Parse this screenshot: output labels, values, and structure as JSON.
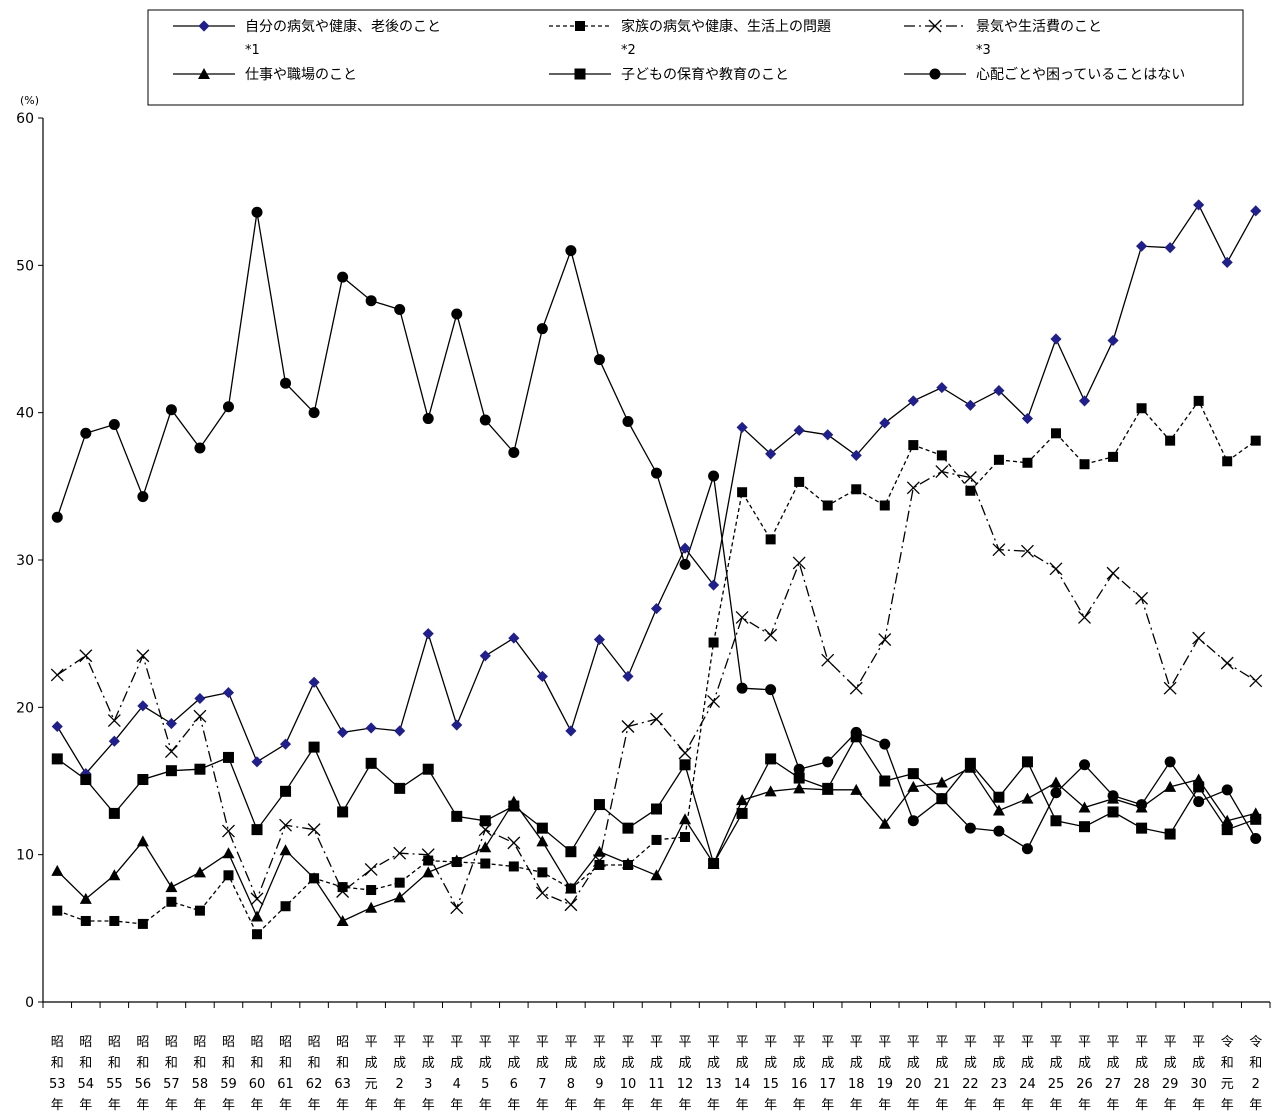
{
  "chart_data": {
    "type": "line",
    "title": "",
    "xlabel": "",
    "ylabel": "(%)",
    "ylim": [
      0,
      60
    ],
    "yticks": [
      0,
      10,
      20,
      30,
      40,
      50,
      60
    ],
    "grid": false,
    "legend_position": "top",
    "categories": [
      "昭和53年",
      "昭和54年",
      "昭和55年",
      "昭和56年",
      "昭和57年",
      "昭和58年",
      "昭和59年",
      "昭和60年",
      "昭和61年",
      "昭和62年",
      "昭和63年",
      "平成元年",
      "平成2年",
      "平成3年",
      "平成4年",
      "平成5年",
      "平成6年",
      "平成7年",
      "平成8年",
      "平成9年",
      "平成10年",
      "平成11年",
      "平成12年",
      "平成13年",
      "平成14年",
      "平成15年",
      "平成16年",
      "平成17年",
      "平成18年",
      "平成19年",
      "平成20年",
      "平成21年",
      "平成22年",
      "平成23年",
      "平成24年",
      "平成25年",
      "平成26年",
      "平成27年",
      "平成28年",
      "平成29年",
      "平成30年",
      "令和元年",
      "令和2年"
    ],
    "category_lines": [
      [
        "昭",
        "和",
        "53",
        "年"
      ],
      [
        "昭",
        "和",
        "54",
        "年"
      ],
      [
        "昭",
        "和",
        "55",
        "年"
      ],
      [
        "昭",
        "和",
        "56",
        "年"
      ],
      [
        "昭",
        "和",
        "57",
        "年"
      ],
      [
        "昭",
        "和",
        "58",
        "年"
      ],
      [
        "昭",
        "和",
        "59",
        "年"
      ],
      [
        "昭",
        "和",
        "60",
        "年"
      ],
      [
        "昭",
        "和",
        "61",
        "年"
      ],
      [
        "昭",
        "和",
        "62",
        "年"
      ],
      [
        "昭",
        "和",
        "63",
        "年"
      ],
      [
        "平",
        "成",
        "元",
        "年"
      ],
      [
        "平",
        "成",
        "2",
        "年"
      ],
      [
        "平",
        "成",
        "3",
        "年"
      ],
      [
        "平",
        "成",
        "4",
        "年"
      ],
      [
        "平",
        "成",
        "5",
        "年"
      ],
      [
        "平",
        "成",
        "6",
        "年"
      ],
      [
        "平",
        "成",
        "7",
        "年"
      ],
      [
        "平",
        "成",
        "8",
        "年"
      ],
      [
        "平",
        "成",
        "9",
        "年"
      ],
      [
        "平",
        "成",
        "10",
        "年"
      ],
      [
        "平",
        "成",
        "11",
        "年"
      ],
      [
        "平",
        "成",
        "12",
        "年"
      ],
      [
        "平",
        "成",
        "13",
        "年"
      ],
      [
        "平",
        "成",
        "14",
        "年"
      ],
      [
        "平",
        "成",
        "15",
        "年"
      ],
      [
        "平",
        "成",
        "16",
        "年"
      ],
      [
        "平",
        "成",
        "17",
        "年"
      ],
      [
        "平",
        "成",
        "18",
        "年"
      ],
      [
        "平",
        "成",
        "19",
        "年"
      ],
      [
        "平",
        "成",
        "20",
        "年"
      ],
      [
        "平",
        "成",
        "21",
        "年"
      ],
      [
        "平",
        "成",
        "22",
        "年"
      ],
      [
        "平",
        "成",
        "23",
        "年"
      ],
      [
        "平",
        "成",
        "24",
        "年"
      ],
      [
        "平",
        "成",
        "25",
        "年"
      ],
      [
        "平",
        "成",
        "26",
        "年"
      ],
      [
        "平",
        "成",
        "27",
        "年"
      ],
      [
        "平",
        "成",
        "28",
        "年"
      ],
      [
        "平",
        "成",
        "29",
        "年"
      ],
      [
        "平",
        "成",
        "30",
        "年"
      ],
      [
        "令",
        "和",
        "元",
        "年"
      ],
      [
        "令",
        "和",
        "2",
        "年"
      ]
    ],
    "series": [
      {
        "name": "自分の病気や健康、老後のこと",
        "note": "*1",
        "marker": "diamond",
        "dash": "solid",
        "color": "#000000",
        "marker_color": "#1f1f8f",
        "values": [
          18.7,
          15.5,
          17.7,
          20.1,
          18.9,
          20.6,
          21.0,
          16.3,
          17.5,
          21.7,
          18.3,
          18.6,
          18.4,
          25.0,
          18.8,
          23.5,
          24.7,
          22.1,
          18.4,
          24.6,
          22.1,
          26.7,
          30.8,
          28.3,
          39.0,
          37.2,
          38.8,
          38.5,
          37.1,
          39.3,
          40.8,
          41.7,
          40.5,
          41.5,
          39.6,
          45.0,
          40.8,
          44.9,
          51.3,
          51.2,
          54.1,
          50.2,
          53.7
        ]
      },
      {
        "name": "家族の病気や健康、生活上の問題",
        "note": "*2",
        "marker": "square",
        "dash": "dashed",
        "color": "#000000",
        "marker_color": "#000000",
        "values": [
          6.2,
          5.5,
          5.5,
          5.3,
          6.8,
          6.2,
          8.6,
          4.6,
          6.5,
          8.4,
          7.8,
          7.6,
          8.1,
          9.6,
          9.5,
          9.4,
          9.2,
          8.8,
          7.7,
          9.3,
          9.3,
          11.0,
          11.2,
          24.4,
          34.6,
          31.4,
          35.3,
          33.7,
          34.8,
          33.7,
          37.8,
          37.1,
          34.7,
          36.8,
          36.6,
          38.6,
          36.5,
          37.0,
          40.3,
          38.1,
          40.8,
          36.7,
          38.1
        ]
      },
      {
        "name": "景気や生活費のこと",
        "note": "*3",
        "marker": "x",
        "dash": "dashdot",
        "color": "#000000",
        "marker_color": "#000000",
        "values": [
          22.2,
          23.5,
          19.1,
          23.5,
          17.0,
          19.4,
          11.6,
          7.0,
          12.0,
          11.7,
          7.5,
          9.0,
          10.1,
          10.0,
          6.4,
          11.7,
          10.8,
          7.4,
          6.6,
          9.6,
          18.7,
          19.2,
          16.9,
          20.4,
          26.1,
          24.9,
          29.8,
          23.2,
          21.3,
          24.6,
          34.9,
          36.0,
          35.6,
          30.7,
          30.6,
          29.4,
          26.1,
          29.1,
          27.4,
          21.3,
          24.7,
          23.0,
          21.8
        ]
      },
      {
        "name": "仕事や職場のこと",
        "marker": "triangle",
        "dash": "solid",
        "color": "#000000",
        "marker_color": "#000000",
        "values": [
          8.9,
          7.0,
          8.6,
          10.9,
          7.8,
          8.8,
          10.1,
          5.8,
          10.3,
          8.4,
          5.5,
          6.4,
          7.1,
          8.8,
          9.6,
          10.5,
          13.6,
          10.9,
          7.7,
          10.2,
          9.4,
          8.6,
          12.4,
          9.4,
          13.7,
          14.3,
          14.5,
          14.4,
          14.4,
          12.1,
          14.6,
          14.9,
          15.9,
          13.0,
          13.8,
          14.9,
          13.2,
          13.8,
          13.2,
          14.6,
          15.1,
          12.3,
          12.8
        ]
      },
      {
        "name": "子どもの保育や教育のこと",
        "marker": "bowtie-square",
        "dash": "solid",
        "color": "#000000",
        "marker_color": "#000000",
        "values": [
          16.5,
          15.1,
          12.8,
          15.1,
          15.7,
          15.8,
          16.6,
          11.7,
          14.3,
          17.3,
          12.9,
          16.2,
          14.5,
          15.8,
          12.6,
          12.3,
          13.3,
          11.8,
          10.2,
          13.4,
          11.8,
          13.1,
          16.1,
          9.4,
          12.8,
          16.5,
          15.2,
          14.5,
          18.0,
          15.0,
          15.5,
          13.8,
          16.2,
          13.9,
          16.3,
          12.3,
          11.9,
          12.9,
          11.8,
          11.4,
          14.6,
          11.7,
          12.4
        ]
      },
      {
        "name": "心配ごとや困っていることはない",
        "marker": "circle",
        "dash": "solid",
        "color": "#000000",
        "marker_color": "#000000",
        "values": [
          32.9,
          38.6,
          39.2,
          34.3,
          40.2,
          37.6,
          40.4,
          53.6,
          42.0,
          40.0,
          49.2,
          47.6,
          47.0,
          39.6,
          46.7,
          39.5,
          37.3,
          45.7,
          51.0,
          43.6,
          39.4,
          35.9,
          29.7,
          35.7,
          21.3,
          21.2,
          15.8,
          16.3,
          18.3,
          17.5,
          12.3,
          13.8,
          11.8,
          11.6,
          10.4,
          14.2,
          16.1,
          14.0,
          13.4,
          16.3,
          13.6,
          14.4,
          11.1
        ]
      }
    ]
  }
}
